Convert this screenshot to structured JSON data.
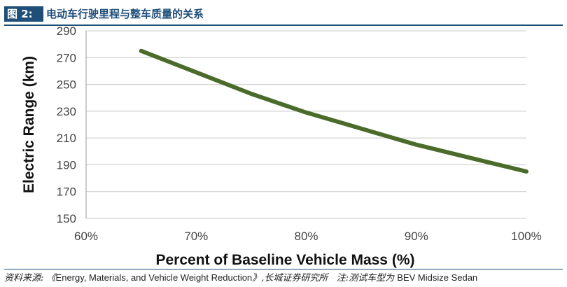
{
  "figure": {
    "label": "图 2:",
    "title": "电动车行驶里程与整车质量的关系"
  },
  "source": {
    "prefix": "资料来源:",
    "open_quote": "《",
    "reference": "Energy, Materials, and Vehicle Weight Reduction",
    "close_quote": "》",
    "publisher": ",长城证券研究所",
    "note_label": "注:测试车型为",
    "note_model": "BEV Midsize Sedan"
  },
  "colors": {
    "line": "#4a6b2a",
    "grid": "#c8c8c8",
    "header": "#1f4e79"
  },
  "chart_data": {
    "type": "line",
    "title": "",
    "xlabel": "Percent of Baseline Vehicle Mass (%)",
    "ylabel": "Electric Range (km)",
    "xlim": [
      60,
      100
    ],
    "ylim": [
      150,
      290
    ],
    "xticks": [
      60,
      70,
      80,
      90,
      100
    ],
    "xtick_labels": [
      "60%",
      "70%",
      "80%",
      "90%",
      "100%"
    ],
    "yticks": [
      150,
      170,
      190,
      210,
      230,
      250,
      270,
      290
    ],
    "ytick_labels": [
      "150",
      "170",
      "190",
      "210",
      "230",
      "250",
      "270",
      "290"
    ],
    "grid": "horizontal",
    "legend": "none",
    "series": [
      {
        "x": [
          65,
          70,
          75,
          80,
          85,
          90,
          95,
          100
        ],
        "y": [
          275,
          259,
          243,
          229,
          217,
          205,
          195,
          185
        ]
      }
    ]
  }
}
